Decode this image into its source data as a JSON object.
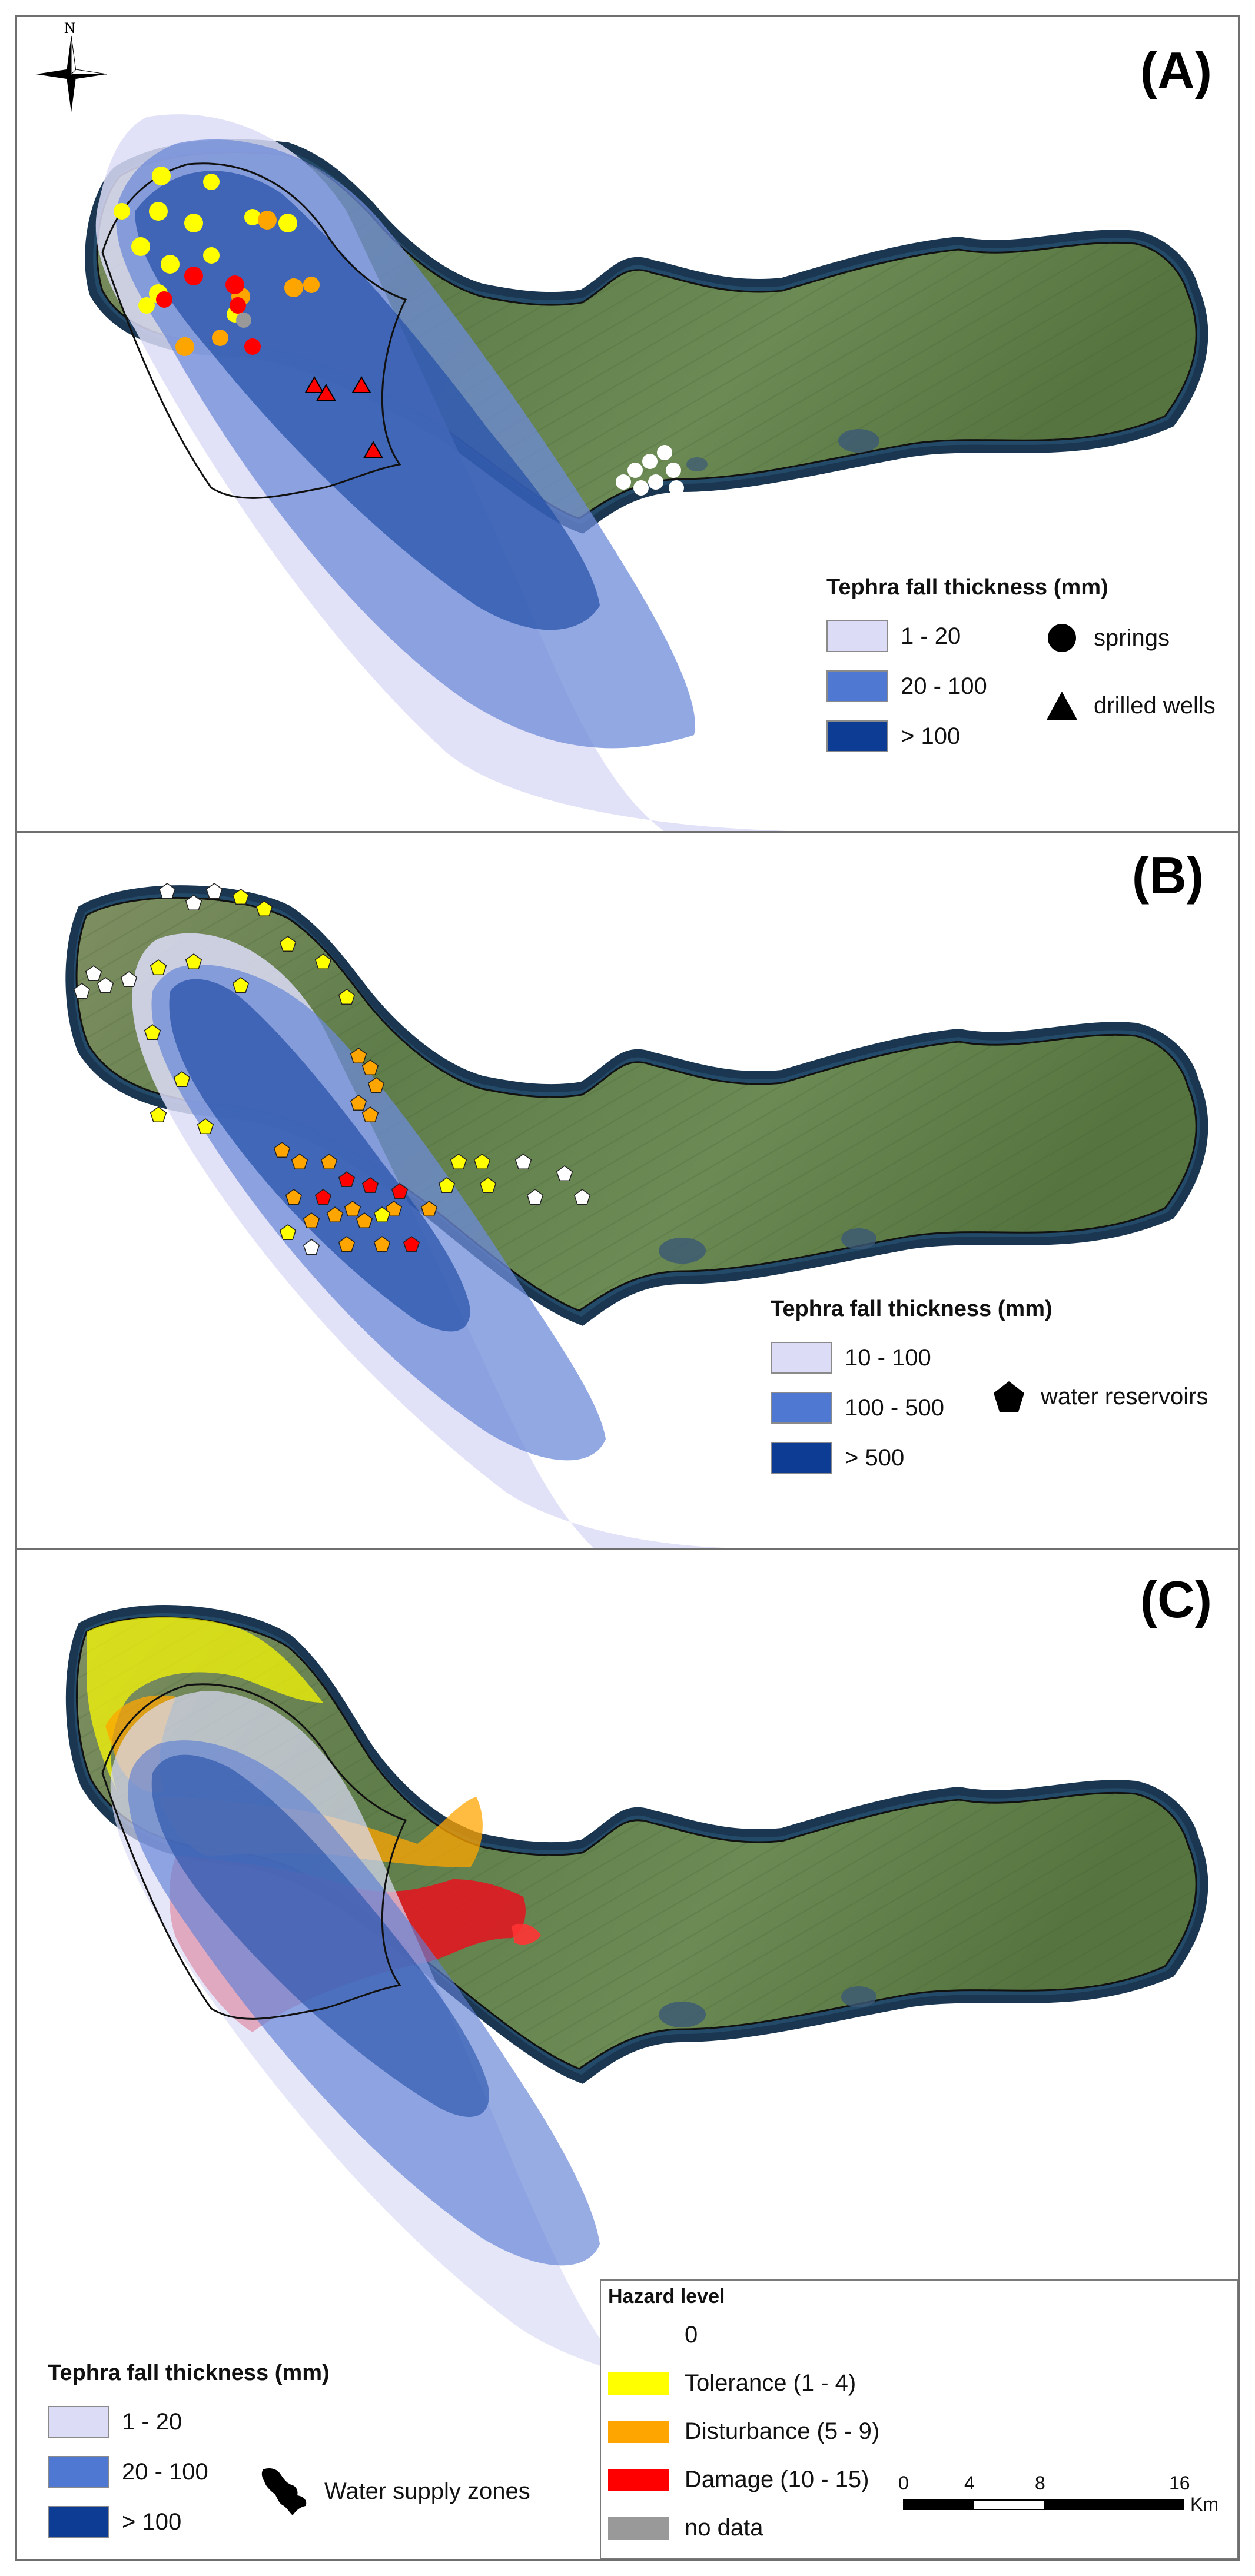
{
  "panels": {
    "a": {
      "label": "(A)"
    },
    "b": {
      "label": "(B)"
    },
    "c": {
      "label": "(C)"
    }
  },
  "north": {
    "label": "N"
  },
  "legend_a": {
    "title": "Tephra fall thickness (mm)",
    "classes": [
      "1 - 20",
      "20 - 100",
      "> 100"
    ],
    "symbols": [
      "springs",
      "drilled wells"
    ]
  },
  "legend_b": {
    "title": "Tephra fall thickness (mm)",
    "classes": [
      "10 - 100",
      "100 - 500",
      "> 500"
    ],
    "symbols": [
      "water reservoirs"
    ]
  },
  "legend_c": {
    "title": "Tephra fall thickness (mm)",
    "classes": [
      "1 - 20",
      "20 - 100",
      "> 100"
    ],
    "zones_label": "Water supply zones"
  },
  "hazard_legend": {
    "title": "Hazard level",
    "levels": [
      "0",
      "Tolerance (1 - 4)",
      "Disturbance (5 - 9)",
      "Damage (10 - 15)",
      "no data"
    ]
  },
  "scale": {
    "ticks": [
      "0",
      "4",
      "8",
      "16"
    ],
    "unit": "Km"
  },
  "colors": {
    "tephra_low": "#dcdcf7",
    "tephra_mid": "#4f78d2",
    "tephra_high": "#0c3c94",
    "tolerance": "#ffff00",
    "disturbance": "#ffa500",
    "damage": "#ff0000",
    "no_data": "#999999",
    "island_vegetation": "#6b8a52",
    "shallow_sea": "#2d5978"
  }
}
